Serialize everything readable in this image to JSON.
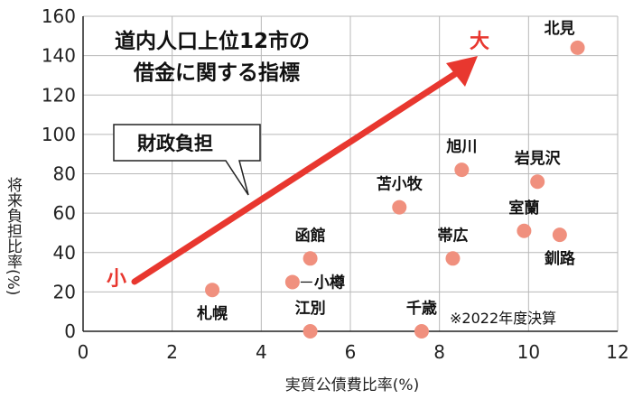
{
  "chart_data": {
    "type": "scatter",
    "title_lines": [
      "道内人口上位12市の",
      "借金に関する指標"
    ],
    "xlabel": "実質公債費比率(%)",
    "ylabel": "将来負担比率(%)",
    "xlim": [
      0,
      12
    ],
    "ylim": [
      0,
      160
    ],
    "x_ticks": [
      "0",
      "2",
      "4",
      "6",
      "8",
      "10",
      "12"
    ],
    "y_ticks": [
      "0",
      "20",
      "40",
      "60",
      "80",
      "100",
      "120",
      "140",
      "160"
    ],
    "grid": true,
    "points": [
      {
        "label": "北見",
        "x": 11.1,
        "y": 144
      },
      {
        "label": "旭川",
        "x": 8.5,
        "y": 82
      },
      {
        "label": "岩見沢",
        "x": 10.2,
        "y": 76
      },
      {
        "label": "苫小牧",
        "x": 7.1,
        "y": 63
      },
      {
        "label": "室蘭",
        "x": 9.9,
        "y": 51
      },
      {
        "label": "釧路",
        "x": 10.7,
        "y": 49
      },
      {
        "label": "帯広",
        "x": 8.3,
        "y": 37
      },
      {
        "label": "函館",
        "x": 5.1,
        "y": 37
      },
      {
        "label": "小樽",
        "x": 4.7,
        "y": 25
      },
      {
        "label": "札幌",
        "x": 2.9,
        "y": 21
      },
      {
        "label": "江別",
        "x": 5.1,
        "y": 0
      },
      {
        "label": "千歳",
        "x": 7.6,
        "y": 0
      }
    ],
    "point_color": "#f0907e",
    "arrow": {
      "color": "#e8372f",
      "start_label": "小",
      "end_label": "大"
    },
    "callout": "財政負担",
    "note": "※2022年度決算"
  }
}
